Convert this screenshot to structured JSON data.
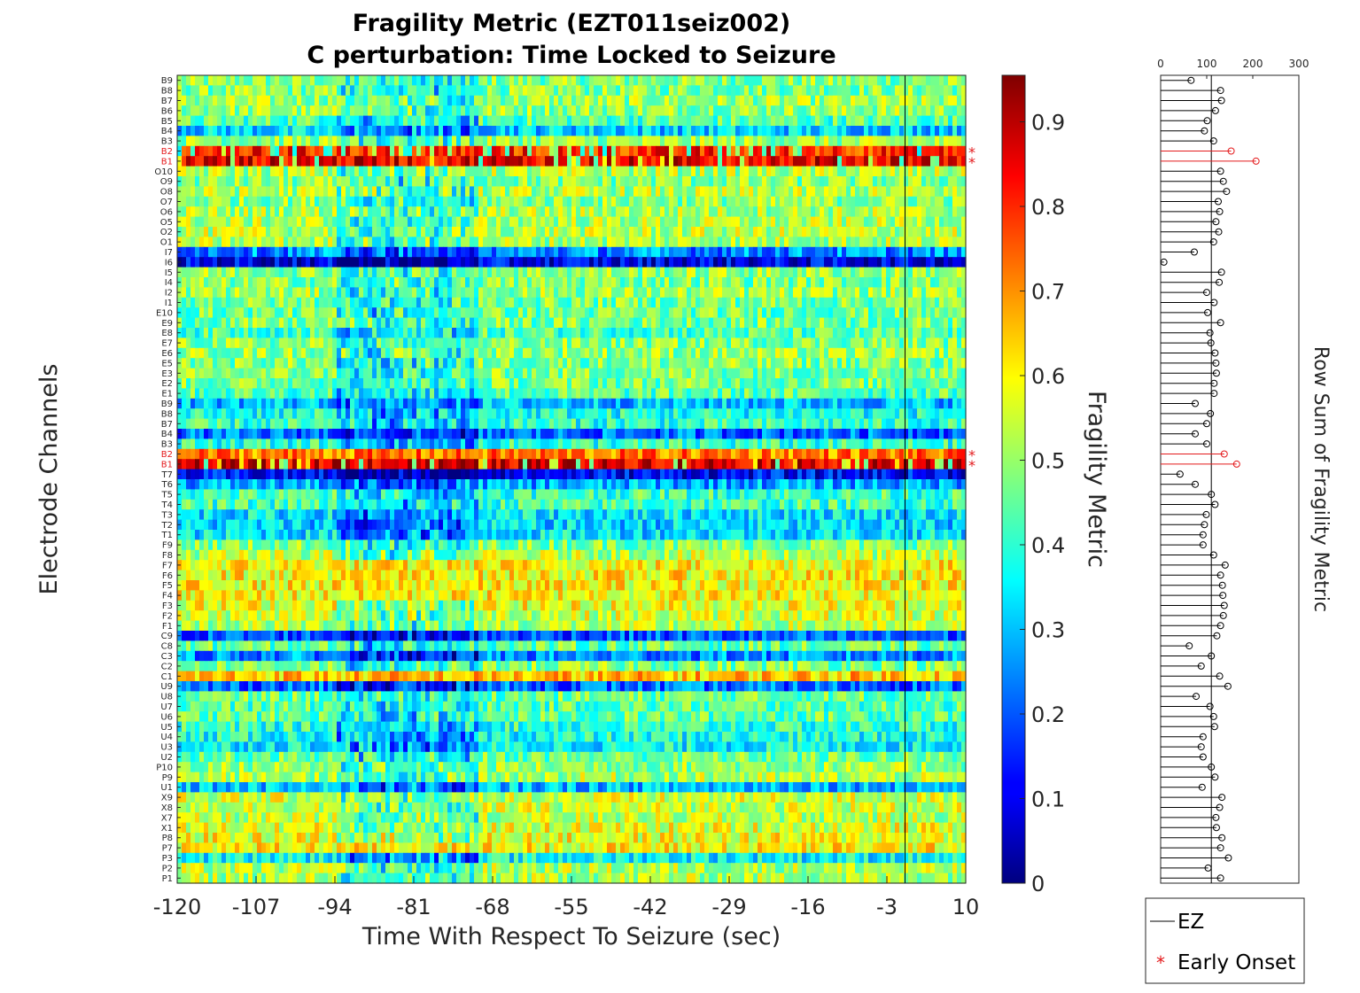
{
  "chart_data": [
    {
      "type": "heatmap",
      "title": "Fragility Metric (EZT011seiz002)",
      "subtitle": "C perturbation:  Time Locked to Seizure",
      "xlabel": "Time With Respect To Seizure (sec)",
      "ylabel": "Electrode Channels",
      "x_ticks": [
        "-120",
        "-107",
        "-94",
        "-81",
        "-68",
        "-55",
        "-42",
        "-29",
        "-16",
        "-3",
        "10"
      ],
      "xlim": [
        -120,
        10
      ],
      "seizure_onset_marker_x": 0,
      "channels_top_to_bottom": [
        "B9",
        "B8",
        "B7",
        "B6",
        "B5",
        "B4",
        "B3",
        "B2",
        "B1",
        "O10",
        "O9",
        "O8",
        "O7",
        "O6",
        "O5",
        "O2",
        "O1",
        "I7",
        "I6",
        "I5",
        "I4",
        "I2",
        "I1",
        "E10",
        "E9",
        "E8",
        "E7",
        "E6",
        "E5",
        "E3",
        "E2",
        "E1",
        "B9",
        "B8",
        "B7",
        "B4",
        "B3",
        "B2",
        "B1",
        "T7",
        "T6",
        "T5",
        "T4",
        "T3",
        "T2",
        "T1",
        "F9",
        "F8",
        "F7",
        "F6",
        "F5",
        "F4",
        "F3",
        "F2",
        "F1",
        "C9",
        "C8",
        "C3",
        "C2",
        "C1",
        "U9",
        "U8",
        "U7",
        "U6",
        "U5",
        "U4",
        "U3",
        "U2",
        "P10",
        "P9",
        "U1",
        "X9",
        "X8",
        "X7",
        "X1",
        "P8",
        "P7",
        "P3",
        "P2",
        "P1"
      ],
      "highlighted_channels_idx": [
        7,
        8,
        37,
        38
      ],
      "early_onset_marked_idx": [
        7,
        8,
        37,
        38
      ],
      "colorbar": {
        "label": "Fragility Metric",
        "ticks": [
          "0",
          "0.1",
          "0.2",
          "0.3",
          "0.4",
          "0.5",
          "0.6",
          "0.7",
          "0.8",
          "0.9"
        ],
        "range": [
          0,
          0.955
        ],
        "colormap": "jet"
      },
      "row_mean_fragility": [
        0.48,
        0.48,
        0.5,
        0.5,
        0.44,
        0.32,
        0.5,
        0.8,
        0.86,
        0.52,
        0.48,
        0.52,
        0.49,
        0.52,
        0.52,
        0.53,
        0.52,
        0.25,
        0.1,
        0.5,
        0.48,
        0.5,
        0.47,
        0.46,
        0.47,
        0.43,
        0.48,
        0.5,
        0.48,
        0.48,
        0.47,
        0.44,
        0.3,
        0.38,
        0.4,
        0.22,
        0.4,
        0.72,
        0.88,
        0.12,
        0.28,
        0.42,
        0.42,
        0.34,
        0.32,
        0.34,
        0.48,
        0.53,
        0.6,
        0.6,
        0.6,
        0.6,
        0.58,
        0.55,
        0.52,
        0.2,
        0.45,
        0.25,
        0.48,
        0.65,
        0.22,
        0.46,
        0.44,
        0.45,
        0.4,
        0.38,
        0.36,
        0.46,
        0.5,
        0.52,
        0.3,
        0.55,
        0.55,
        0.53,
        0.57,
        0.58,
        0.6,
        0.36,
        0.52,
        0.52
      ]
    },
    {
      "type": "scatter",
      "ylabel": "Row Sum of Fragility Metric",
      "x_ticks": [
        "0",
        "100",
        "200",
        "300"
      ],
      "xlim": [
        0,
        300
      ],
      "ez_line_x": 110,
      "row_sums": [
        66,
        130,
        132,
        119,
        101,
        95,
        115,
        153,
        207,
        130,
        136,
        143,
        125,
        128,
        120,
        126,
        115,
        73,
        7,
        132,
        127,
        100,
        116,
        102,
        130,
        107,
        109,
        118,
        120,
        121,
        116,
        116,
        75,
        108,
        100,
        75,
        100,
        138,
        165,
        42,
        75,
        110,
        118,
        99,
        95,
        92,
        92,
        115,
        140,
        130,
        134,
        135,
        138,
        136,
        130,
        122,
        62,
        110,
        88,
        128,
        146,
        77,
        107,
        115,
        117,
        92,
        88,
        92,
        110,
        118,
        90,
        133,
        128,
        120,
        121,
        133,
        130,
        147,
        103,
        130
      ]
    }
  ],
  "legend": {
    "entries": [
      "EZ",
      "Early Onset"
    ],
    "colors": {
      "ez": "#000000",
      "early_onset": "#e41a1c"
    }
  },
  "early_onset_glyph": "*"
}
